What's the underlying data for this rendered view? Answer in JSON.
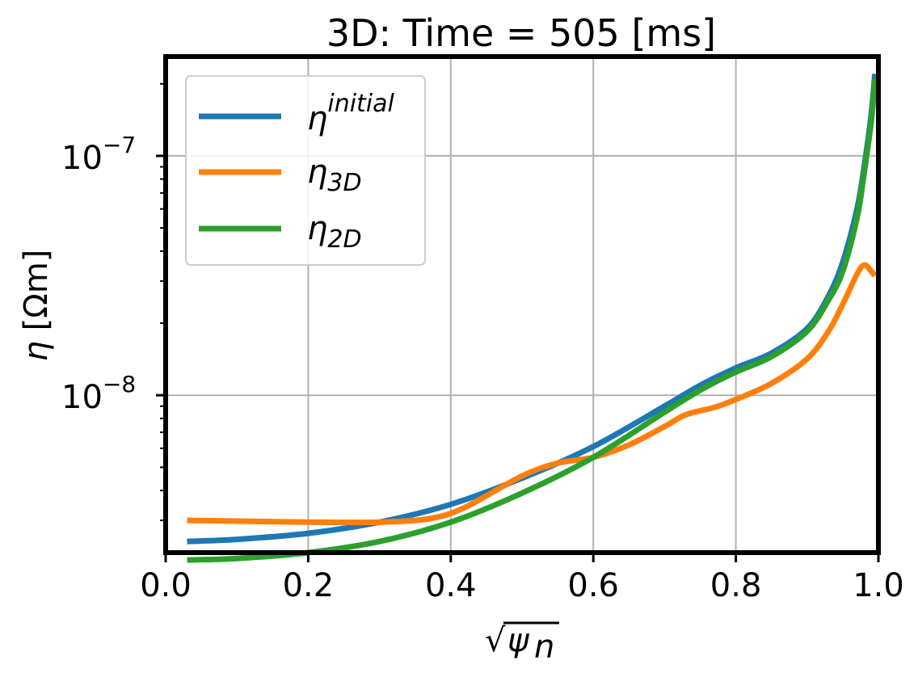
{
  "chart_data": {
    "type": "line",
    "title": "3D: Time = 505 [ms]",
    "xlabel": "√ψn",
    "xlabel_parts": {
      "radical": "√",
      "symbol": "ψ",
      "subscript": "n"
    },
    "ylabel": "η [Ωm]",
    "ylabel_parts": {
      "symbol": "η",
      "unit": "[Ωm]"
    },
    "yscale": "log",
    "xlim": [
      0.0,
      1.0
    ],
    "ylim": [
      2.2e-09,
      2.6e-07
    ],
    "xticks": [
      "0.0",
      "0.2",
      "0.4",
      "0.6",
      "0.8",
      "1.0"
    ],
    "xtick_values": [
      0.0,
      0.2,
      0.4,
      0.6,
      0.8,
      1.0
    ],
    "yticks": [
      {
        "value": 1e-07,
        "base": "10",
        "exp": "−7"
      },
      {
        "value": 1e-08,
        "base": "10",
        "exp": "−8"
      }
    ],
    "grid": true,
    "legend_position": "top-left",
    "series": [
      {
        "name": "η^initial",
        "legend_symbol": "η",
        "legend_super": "initial",
        "legend_sub": "",
        "color": "#1f77b4",
        "x": [
          0.03,
          0.1,
          0.2,
          0.3,
          0.4,
          0.5,
          0.6,
          0.7,
          0.75,
          0.8,
          0.85,
          0.9,
          0.93,
          0.95,
          0.97,
          0.98,
          0.99,
          0.995
        ],
        "y": [
          2.45e-09,
          2.5e-09,
          2.65e-09,
          2.95e-09,
          3.5e-09,
          4.5e-09,
          6.1e-09,
          9e-09,
          1.1e-08,
          1.3e-08,
          1.5e-08,
          1.9e-08,
          2.6e-08,
          3.6e-08,
          6e-08,
          9e-08,
          1.5e-07,
          2.2e-07
        ]
      },
      {
        "name": "η_3D",
        "legend_symbol": "η",
        "legend_super": "",
        "legend_sub": "3D",
        "color": "#ff7f0e",
        "x": [
          0.03,
          0.1,
          0.2,
          0.3,
          0.37,
          0.42,
          0.5,
          0.55,
          0.6,
          0.65,
          0.7,
          0.73,
          0.77,
          0.8,
          0.85,
          0.9,
          0.93,
          0.95,
          0.97,
          0.98,
          0.99,
          0.995
        ],
        "y": [
          3e-09,
          2.98e-09,
          2.95e-09,
          2.95e-09,
          3.05e-09,
          3.4e-09,
          4.6e-09,
          5.2e-09,
          5.5e-09,
          6.2e-09,
          7.4e-09,
          8.3e-09,
          8.9e-09,
          9.6e-09,
          1.12e-08,
          1.42e-08,
          1.85e-08,
          2.4e-08,
          3.2e-08,
          3.5e-08,
          3.3e-08,
          3.15e-08
        ]
      },
      {
        "name": "η_2D",
        "legend_symbol": "η",
        "legend_super": "",
        "legend_sub": "2D",
        "color": "#2ca02c",
        "x": [
          0.03,
          0.1,
          0.2,
          0.3,
          0.4,
          0.5,
          0.6,
          0.7,
          0.75,
          0.8,
          0.85,
          0.9,
          0.93,
          0.95,
          0.97,
          0.98,
          0.99,
          0.995
        ],
        "y": [
          2.05e-09,
          2.08e-09,
          2.2e-09,
          2.45e-09,
          2.95e-09,
          3.9e-09,
          5.5e-09,
          8.5e-09,
          1.05e-08,
          1.25e-08,
          1.45e-08,
          1.85e-08,
          2.5e-08,
          3.3e-08,
          5.5e-08,
          8.5e-08,
          1.4e-07,
          2.1e-07
        ]
      }
    ]
  }
}
